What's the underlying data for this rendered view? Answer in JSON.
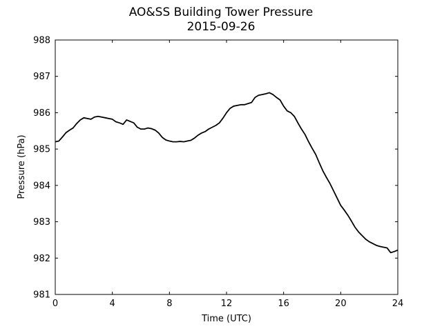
{
  "chart_data": {
    "type": "line",
    "title": "AO&SS Building Tower Pressure",
    "subtitle": "2015-09-26",
    "xlabel": "Time (UTC)",
    "ylabel": "Pressure (hPa)",
    "xlim": [
      0,
      24
    ],
    "ylim": [
      981,
      988
    ],
    "xticks": [
      0,
      4,
      8,
      12,
      16,
      20,
      24
    ],
    "yticks": [
      981,
      982,
      983,
      984,
      985,
      986,
      987,
      988
    ],
    "grid": false,
    "line_color": "#000000",
    "series": [
      {
        "x": [
          0,
          0.25,
          0.5,
          0.75,
          1,
          1.25,
          1.5,
          1.75,
          2,
          2.25,
          2.5,
          2.75,
          3,
          3.25,
          3.5,
          3.75,
          4,
          4.25,
          4.5,
          4.75,
          5,
          5.25,
          5.5,
          5.75,
          6,
          6.25,
          6.5,
          6.75,
          7,
          7.25,
          7.5,
          7.75,
          8,
          8.25,
          8.5,
          8.75,
          9,
          9.25,
          9.5,
          9.75,
          10,
          10.25,
          10.5,
          10.75,
          11,
          11.25,
          11.5,
          11.75,
          12,
          12.25,
          12.5,
          12.75,
          13,
          13.25,
          13.5,
          13.75,
          14,
          14.25,
          14.5,
          14.75,
          15,
          15.25,
          15.5,
          15.75,
          16,
          16.25,
          16.5,
          16.75,
          17,
          17.25,
          17.5,
          17.75,
          18,
          18.25,
          18.5,
          18.75,
          19,
          19.25,
          19.5,
          19.75,
          20,
          20.25,
          20.5,
          20.75,
          21,
          21.25,
          21.5,
          21.75,
          22,
          22.25,
          22.5,
          22.75,
          23,
          23.25,
          23.5,
          23.75,
          24
        ],
        "y": [
          985.2,
          985.22,
          985.33,
          985.45,
          985.52,
          985.58,
          985.7,
          985.8,
          985.86,
          985.84,
          985.82,
          985.88,
          985.9,
          985.88,
          985.86,
          985.84,
          985.82,
          985.75,
          985.72,
          985.68,
          985.8,
          985.76,
          985.72,
          985.6,
          985.55,
          985.55,
          985.58,
          985.56,
          985.52,
          985.44,
          985.32,
          985.25,
          985.22,
          985.2,
          985.2,
          985.21,
          985.2,
          985.22,
          985.24,
          985.3,
          985.38,
          985.44,
          985.48,
          985.55,
          985.6,
          985.65,
          985.72,
          985.85,
          986.0,
          986.12,
          986.18,
          986.2,
          986.22,
          986.22,
          986.25,
          986.28,
          986.42,
          986.48,
          986.5,
          986.52,
          986.55,
          986.5,
          986.42,
          986.35,
          986.18,
          986.05,
          986.0,
          985.9,
          985.72,
          985.55,
          985.4,
          985.2,
          985.02,
          984.85,
          984.62,
          984.4,
          984.22,
          984.05,
          983.85,
          983.65,
          983.45,
          983.32,
          983.18,
          983.02,
          982.85,
          982.72,
          982.62,
          982.52,
          982.45,
          982.4,
          982.35,
          982.32,
          982.3,
          982.28,
          982.15,
          982.18,
          982.22
        ]
      }
    ]
  }
}
